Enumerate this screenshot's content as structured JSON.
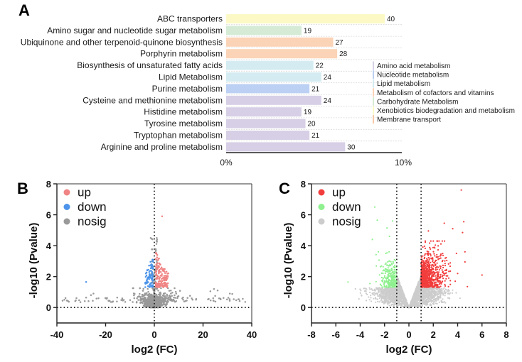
{
  "panels": {
    "a": "A",
    "b": "B",
    "c": "C"
  },
  "chart_data": [
    {
      "panel": "A",
      "type": "bar",
      "orientation": "horizontal",
      "categories": [
        "ABC transporters",
        "Amino sugar and nucleotide sugar metabolism",
        "Ubiquinone and other terpenoid-quinone biosynthesis",
        "Porphyrin metabolism",
        "Biosynthesis of unsaturated fatty acids",
        "Lipid Metabolism",
        "Purine metabolism",
        "Cysteine and methionine metabolism",
        "Histidine metabolism",
        "Tyrosine metabolism",
        "Tryptophan metabolism",
        "Arginine and proline metabolism"
      ],
      "values": [
        40,
        19,
        27,
        28,
        22,
        24,
        21,
        24,
        19,
        20,
        21,
        30
      ],
      "value_labels": [
        "40",
        "19",
        "27",
        "28",
        "22",
        "24",
        "21",
        "24",
        "19",
        "20",
        "21",
        "30"
      ],
      "bar_groups": [
        "Xenobiotics",
        "Carbohydrate",
        "Cofactors",
        "Cofactors",
        "Lipid",
        "Lipid",
        "Nucleotide",
        "Amino",
        "Amino",
        "Amino",
        "Amino",
        "Amino"
      ],
      "x_ticks": [
        "0%",
        "10%"
      ],
      "x_count_at_10pct": 44.3,
      "legend": [
        {
          "key": "Amino",
          "label": "Amino acid metabolism",
          "color": "#d7cfe6"
        },
        {
          "key": "Nucleotide",
          "label": "Nucleotide metabolism",
          "color": "#bcd0f3"
        },
        {
          "key": "Lipid",
          "label": "Lipid metabolism",
          "color": "#d4ecf1"
        },
        {
          "key": "Cofactors",
          "label": "Metabolism of cofactors and vitamins",
          "color": "#fbd3b6"
        },
        {
          "key": "Carbohydrate",
          "label": "Carbohydrate Metabolism",
          "color": "#d5ebd5"
        },
        {
          "key": "Xenobiotics",
          "label": "Xenobiotics biodegradation and metabolism",
          "color": "#fcf9c6"
        },
        {
          "key": "Membrane",
          "label": "Membrane transport",
          "color": "#f7c9a6"
        }
      ]
    },
    {
      "panel": "B",
      "type": "scatter",
      "xlabel": "log2 (FC)",
      "ylabel": "-log10 (Pvalue)",
      "xlim": [
        -40,
        40
      ],
      "ylim": [
        -1,
        8
      ],
      "x_ticks": [
        -40,
        -20,
        0,
        20,
        40
      ],
      "y_ticks": [
        0,
        2,
        4,
        6,
        8
      ],
      "reference_lines": {
        "x": [
          0
        ],
        "y": [
          0
        ]
      },
      "legend_position": "top-left",
      "series": [
        {
          "name": "up",
          "color": "#f08484"
        },
        {
          "name": "down",
          "color": "#4d94ea"
        },
        {
          "name": "nosig",
          "color": "#999999"
        }
      ],
      "clouds": [
        {
          "series": "nosig",
          "shape": "core",
          "n": 900,
          "x_sd": 2.0,
          "y_max": 1.25
        },
        {
          "series": "nosig",
          "shape": "column",
          "n": 60,
          "x_range": [
            -1.2,
            1.2
          ],
          "y_range": [
            1.2,
            4.7
          ]
        },
        {
          "series": "nosig",
          "shape": "tails",
          "n": 80,
          "x_range": [
            -38,
            38
          ],
          "y_range": [
            0.35,
            0.65
          ]
        },
        {
          "series": "up",
          "shape": "wedge",
          "n": 160,
          "x_range": [
            0.6,
            5.8
          ],
          "y_range": [
            1.3,
            3.6
          ]
        },
        {
          "series": "down",
          "shape": "wedge",
          "n": 90,
          "x_range": [
            -0.5,
            -3.8
          ],
          "y_range": [
            1.3,
            3.4
          ]
        }
      ],
      "outliers": [
        {
          "series": "up",
          "x": 3.2,
          "y": 5.9
        },
        {
          "series": "down",
          "x": -28,
          "y": 1.65
        },
        {
          "series": "nosig",
          "x": -25,
          "y": 0.9
        },
        {
          "series": "nosig",
          "x": -26,
          "y": 0.8
        },
        {
          "series": "nosig",
          "x": 23,
          "y": 1.05
        },
        {
          "series": "nosig",
          "x": 24.5,
          "y": 1.2
        },
        {
          "series": "nosig",
          "x": 26,
          "y": 1.1
        },
        {
          "series": "nosig",
          "x": 25,
          "y": 0.75
        },
        {
          "series": "nosig",
          "x": 31,
          "y": 0.9
        },
        {
          "series": "nosig",
          "x": 32,
          "y": 0.88
        },
        {
          "series": "nosig",
          "x": 9,
          "y": 0.9
        },
        {
          "series": "nosig",
          "x": -1.5,
          "y": 4.5
        },
        {
          "series": "nosig",
          "x": 1.0,
          "y": 4.5
        }
      ]
    },
    {
      "panel": "C",
      "type": "scatter",
      "xlabel": "log2 (FC)",
      "ylabel": "-log10 (Pvalue)",
      "xlim": [
        -8,
        8
      ],
      "ylim": [
        -1,
        8
      ],
      "x_ticks": [
        -8,
        -6,
        -4,
        -2,
        0,
        2,
        4,
        6,
        8
      ],
      "y_ticks": [
        0,
        2,
        4,
        6,
        8
      ],
      "reference_lines": {
        "x": [
          -1,
          1
        ],
        "y": [
          0
        ]
      },
      "significance_threshold_y": 1.3,
      "legend_position": "top-left",
      "series": [
        {
          "name": "up",
          "color": "#f23d3d"
        },
        {
          "name": "down",
          "color": "#8ef08e"
        },
        {
          "name": "nosig",
          "color": "#cccccc"
        }
      ],
      "clouds": [
        {
          "series": "nosig",
          "shape": "v",
          "n": 2600,
          "x_sd": 1.25,
          "v_slope": 2.1
        },
        {
          "series": "up",
          "shape": "cluster",
          "n": 750,
          "x_range": [
            1,
            3.4
          ],
          "y_range": [
            1.3,
            4.3
          ]
        },
        {
          "series": "down",
          "shape": "cluster",
          "n": 260,
          "x_range": [
            -1,
            -2.7
          ],
          "y_range": [
            1.3,
            3.6
          ]
        }
      ],
      "outliers": [
        {
          "series": "up",
          "x": 4.3,
          "y": 7.6
        },
        {
          "series": "up",
          "x": 4.5,
          "y": 5.55
        },
        {
          "series": "up",
          "x": 2.9,
          "y": 5.45
        },
        {
          "series": "up",
          "x": 4.4,
          "y": 4.85
        },
        {
          "series": "up",
          "x": 1.6,
          "y": 4.95
        },
        {
          "series": "up",
          "x": 3.6,
          "y": 5.1
        },
        {
          "series": "up",
          "x": 6.0,
          "y": 2.1
        },
        {
          "series": "up",
          "x": 4.8,
          "y": 1.35
        },
        {
          "series": "up",
          "x": 3.9,
          "y": 3.5
        },
        {
          "series": "up",
          "x": 4.6,
          "y": 3.6
        },
        {
          "series": "up",
          "x": 4.6,
          "y": 2.95
        },
        {
          "series": "up",
          "x": 3.8,
          "y": 1.7
        },
        {
          "series": "up",
          "x": 4.0,
          "y": 2.2
        },
        {
          "series": "down",
          "x": -2.8,
          "y": 6.5
        },
        {
          "series": "down",
          "x": -2.6,
          "y": 5.65
        },
        {
          "series": "down",
          "x": -1.35,
          "y": 5.6
        },
        {
          "series": "down",
          "x": -1.8,
          "y": 5.15
        },
        {
          "series": "down",
          "x": -3.0,
          "y": 4.4
        },
        {
          "series": "down",
          "x": -1.6,
          "y": 4.6
        },
        {
          "series": "down",
          "x": -5.0,
          "y": 1.65
        },
        {
          "series": "down",
          "x": -3.2,
          "y": 1.55
        },
        {
          "series": "nosig",
          "x": -3.5,
          "y": 0.45
        },
        {
          "series": "nosig",
          "x": -3.9,
          "y": 0.8
        },
        {
          "series": "nosig",
          "x": 4.2,
          "y": 0.6
        }
      ]
    }
  ]
}
